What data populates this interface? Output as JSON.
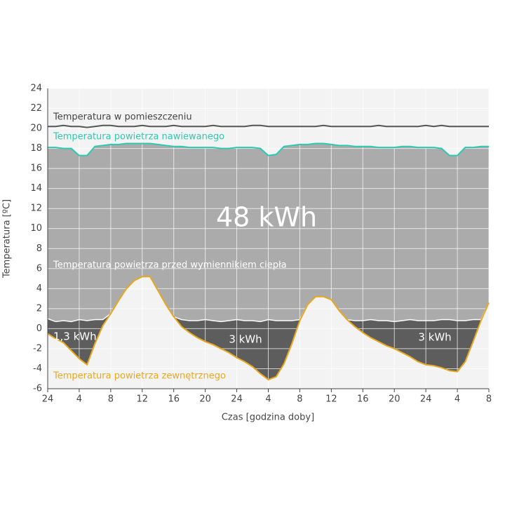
{
  "chart_data": {
    "type": "area",
    "xlabel": "Czas [godzina doby]",
    "ylabel": "Temperatura [ºC]",
    "xlim": [
      0,
      56
    ],
    "ylim": [
      -6,
      24
    ],
    "yticks": [
      -6,
      -4,
      -2,
      0,
      2,
      4,
      6,
      8,
      10,
      12,
      14,
      16,
      18,
      20,
      22,
      24
    ],
    "xticks": [
      {
        "value": 0,
        "label": "24"
      },
      4,
      8,
      12,
      16,
      20,
      {
        "value": 24,
        "label": "24"
      },
      {
        "value": 28,
        "label": "4"
      },
      {
        "value": 32,
        "label": "8"
      },
      {
        "value": 36,
        "label": "12"
      },
      {
        "value": 40,
        "label": "16"
      },
      {
        "value": 44,
        "label": "20"
      },
      {
        "value": 48,
        "label": "24"
      },
      {
        "value": 52,
        "label": "4"
      },
      {
        "value": 56,
        "label": "8"
      }
    ],
    "grid": true,
    "x": [
      0,
      1,
      2,
      3,
      4,
      5,
      6,
      7,
      8,
      9,
      10,
      11,
      12,
      13,
      14,
      15,
      16,
      17,
      18,
      19,
      20,
      21,
      22,
      23,
      24,
      25,
      26,
      27,
      28,
      29,
      30,
      31,
      32,
      33,
      34,
      35,
      36,
      37,
      38,
      39,
      40,
      41,
      42,
      43,
      44,
      45,
      46,
      47,
      48,
      49,
      50,
      51,
      52,
      53,
      54,
      55,
      56
    ],
    "series": [
      {
        "name": "Temperatura w pomieszczeniu",
        "color": "#555555",
        "values": [
          20.2,
          20.2,
          20.3,
          20.2,
          20.2,
          20.1,
          20.2,
          20.3,
          20.3,
          20.2,
          20.2,
          20.2,
          20.3,
          20.2,
          20.2,
          20.2,
          20.3,
          20.2,
          20.2,
          20.2,
          20.2,
          20.3,
          20.2,
          20.2,
          20.2,
          20.2,
          20.3,
          20.3,
          20.2,
          20.2,
          20.2,
          20.2,
          20.2,
          20.2,
          20.2,
          20.3,
          20.2,
          20.2,
          20.2,
          20.2,
          20.2,
          20.2,
          20.3,
          20.2,
          20.2,
          20.2,
          20.2,
          20.2,
          20.3,
          20.2,
          20.3,
          20.2,
          20.2,
          20.2,
          20.2,
          20.2,
          20.2
        ]
      },
      {
        "name": "Temperatura powietrza nawiewanego",
        "color": "#2ec9b0",
        "values": [
          18.1,
          18.1,
          18.0,
          18.0,
          17.3,
          17.3,
          18.2,
          18.3,
          18.4,
          18.4,
          18.5,
          18.5,
          18.5,
          18.5,
          18.4,
          18.3,
          18.2,
          18.2,
          18.1,
          18.1,
          18.1,
          18.1,
          18.0,
          18.0,
          18.1,
          18.1,
          18.1,
          18.0,
          17.3,
          17.4,
          18.2,
          18.3,
          18.4,
          18.4,
          18.5,
          18.5,
          18.4,
          18.3,
          18.3,
          18.2,
          18.2,
          18.2,
          18.1,
          18.1,
          18.1,
          18.2,
          18.2,
          18.1,
          18.1,
          18.1,
          18.0,
          17.3,
          17.3,
          18.1,
          18.1,
          18.2,
          18.2
        ]
      },
      {
        "name": "Temperatura powietrza przed wymiennikiem ciepła",
        "color": "#ffffff",
        "values": [
          1.0,
          0.7,
          0.8,
          0.7,
          0.9,
          0.8,
          0.9,
          0.9,
          1.5,
          2.8,
          4.0,
          4.8,
          5.2,
          5.2,
          3.8,
          2.4,
          1.2,
          0.9,
          0.8,
          0.8,
          0.9,
          0.8,
          0.7,
          0.8,
          0.9,
          0.8,
          0.8,
          0.7,
          0.9,
          0.8,
          0.8,
          0.8,
          0.9,
          2.4,
          3.2,
          3.2,
          2.9,
          1.8,
          0.9,
          0.8,
          0.8,
          0.9,
          0.8,
          0.8,
          0.7,
          0.8,
          0.9,
          0.8,
          0.8,
          0.8,
          0.9,
          0.9,
          0.8,
          0.8,
          0.9,
          0.9,
          2.6
        ]
      },
      {
        "name": "Temperatura powietrza zewnętrznego",
        "color": "#e8a81e",
        "values": [
          -0.5,
          -1.0,
          -1.4,
          -2.2,
          -3.0,
          -3.6,
          -1.5,
          0.3,
          1.5,
          2.8,
          4.0,
          4.8,
          5.2,
          5.2,
          3.8,
          2.4,
          1.2,
          0.2,
          -0.4,
          -0.9,
          -1.3,
          -1.6,
          -2.0,
          -2.4,
          -2.9,
          -3.3,
          -3.8,
          -4.5,
          -5.1,
          -4.8,
          -3.5,
          -1.5,
          0.8,
          2.4,
          3.2,
          3.2,
          2.9,
          1.8,
          0.9,
          0.2,
          -0.4,
          -0.9,
          -1.3,
          -1.7,
          -2.0,
          -2.4,
          -2.8,
          -3.3,
          -3.6,
          -3.7,
          -3.9,
          -4.2,
          -4.3,
          -3.3,
          -1.3,
          0.8,
          2.6
        ]
      }
    ],
    "annotations": [
      "48 kWh",
      "1,3 kWh",
      "3 kWh",
      "3 kWh"
    ]
  }
}
